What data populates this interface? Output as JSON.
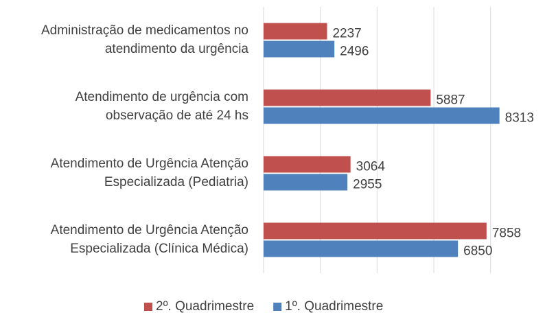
{
  "chart_data": {
    "type": "barh",
    "categories": [
      [
        "Administração de medicamentos no",
        "atendimento da urgência"
      ],
      [
        "Atendimento de urgência com",
        "observação de até 24 hs"
      ],
      [
        "Atendimento de Urgência Atenção",
        "Especializada (Pediatria)"
      ],
      [
        "Atendimento de Urgência Atenção",
        "Especializada (Clínica Médica)"
      ]
    ],
    "series": [
      {
        "name": "2º. Quadrimestre",
        "color": "#c0504d",
        "values": [
          2237,
          5887,
          3064,
          7858
        ]
      },
      {
        "name": "1º. Quadrimestre",
        "color": "#4f81bd",
        "values": [
          2496,
          8313,
          2955,
          6850
        ]
      }
    ],
    "xlim": [
      0,
      9700
    ],
    "xticks": [
      0,
      2000,
      4000,
      6000,
      8000
    ],
    "grid": true,
    "legend": "bottom"
  }
}
